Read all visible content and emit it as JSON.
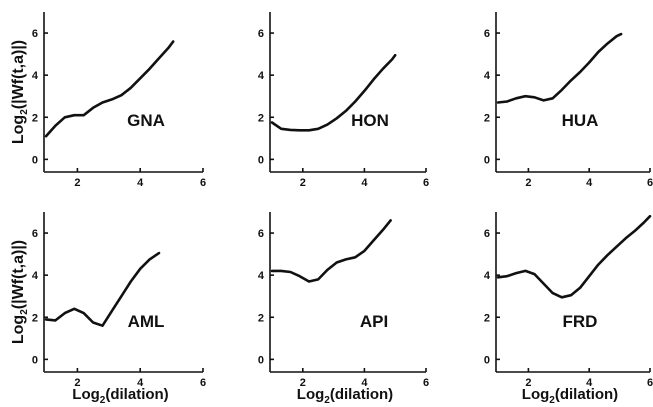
{
  "chart_data": [
    {
      "type": "line",
      "label": "GNA",
      "xlim": [
        1,
        6
      ],
      "ylim": [
        -0.6,
        7
      ],
      "xticks": [
        2,
        4,
        6
      ],
      "yticks": [
        0,
        2,
        4,
        6
      ],
      "ylabel_parts": [
        "Log",
        "2",
        "(|Wf(t,a)|)"
      ],
      "xlabel_parts": [],
      "x": [
        1.0,
        1.3,
        1.6,
        1.9,
        2.2,
        2.5,
        2.8,
        3.1,
        3.4,
        3.7,
        4.0,
        4.3,
        4.6,
        4.9,
        5.05
      ],
      "y": [
        1.1,
        1.6,
        2.0,
        2.1,
        2.1,
        2.45,
        2.7,
        2.85,
        3.05,
        3.4,
        3.85,
        4.3,
        4.8,
        5.3,
        5.6
      ]
    },
    {
      "type": "line",
      "label": "HON",
      "xlim": [
        1,
        6
      ],
      "ylim": [
        -0.6,
        7
      ],
      "xticks": [
        2,
        4,
        6
      ],
      "yticks": [
        0,
        2,
        4,
        6
      ],
      "ylabel_parts": [],
      "xlabel_parts": [],
      "x": [
        1.0,
        1.3,
        1.6,
        1.9,
        2.2,
        2.5,
        2.8,
        3.1,
        3.4,
        3.7,
        4.0,
        4.3,
        4.6,
        4.9,
        5.0
      ],
      "y": [
        1.75,
        1.45,
        1.4,
        1.38,
        1.38,
        1.45,
        1.65,
        1.95,
        2.3,
        2.75,
        3.25,
        3.8,
        4.3,
        4.75,
        4.95
      ]
    },
    {
      "type": "line",
      "label": "HUA",
      "xlim": [
        1,
        6
      ],
      "ylim": [
        -0.6,
        7
      ],
      "xticks": [
        2,
        4,
        6
      ],
      "yticks": [
        0,
        2,
        4,
        6
      ],
      "ylabel_parts": [],
      "xlabel_parts": [],
      "x": [
        1.0,
        1.3,
        1.6,
        1.9,
        2.2,
        2.5,
        2.8,
        3.1,
        3.4,
        3.7,
        4.0,
        4.3,
        4.6,
        4.9,
        5.05
      ],
      "y": [
        2.7,
        2.75,
        2.9,
        3.0,
        2.95,
        2.8,
        2.9,
        3.3,
        3.75,
        4.15,
        4.6,
        5.1,
        5.5,
        5.85,
        5.95
      ]
    },
    {
      "type": "line",
      "label": "AML",
      "xlim": [
        1,
        6
      ],
      "ylim": [
        -0.6,
        7
      ],
      "xticks": [
        2,
        4,
        6
      ],
      "yticks": [
        0,
        2,
        4,
        6
      ],
      "ylabel_parts": [
        "Log",
        "2",
        "(|Wf(t,a)|)"
      ],
      "xlabel_parts": [
        "Log",
        "2",
        "(dilation)"
      ],
      "x": [
        1.0,
        1.3,
        1.6,
        1.9,
        2.2,
        2.5,
        2.8,
        3.1,
        3.4,
        3.7,
        4.0,
        4.3,
        4.6
      ],
      "y": [
        1.9,
        1.85,
        2.2,
        2.4,
        2.2,
        1.75,
        1.6,
        2.3,
        3.0,
        3.7,
        4.3,
        4.75,
        5.05
      ]
    },
    {
      "type": "line",
      "label": "API",
      "xlim": [
        1,
        6
      ],
      "ylim": [
        -0.6,
        7
      ],
      "xticks": [
        2,
        4,
        6
      ],
      "yticks": [
        0,
        2,
        4,
        6
      ],
      "ylabel_parts": [],
      "xlabel_parts": [
        "Log",
        "2",
        "(dilation)"
      ],
      "x": [
        1.0,
        1.3,
        1.6,
        1.9,
        2.2,
        2.5,
        2.8,
        3.1,
        3.4,
        3.7,
        4.0,
        4.3,
        4.6,
        4.85
      ],
      "y": [
        4.2,
        4.2,
        4.15,
        3.95,
        3.7,
        3.8,
        4.25,
        4.6,
        4.75,
        4.85,
        5.15,
        5.65,
        6.15,
        6.6
      ]
    },
    {
      "type": "line",
      "label": "FRD",
      "xlim": [
        1,
        6
      ],
      "ylim": [
        -0.6,
        7
      ],
      "xticks": [
        2,
        4,
        6
      ],
      "yticks": [
        0,
        2,
        4,
        6
      ],
      "ylabel_parts": [],
      "xlabel_parts": [
        "Log",
        "2",
        "(dilation)"
      ],
      "x": [
        1.0,
        1.3,
        1.6,
        1.9,
        2.2,
        2.5,
        2.8,
        3.1,
        3.4,
        3.7,
        4.0,
        4.3,
        4.6,
        4.9,
        5.2,
        5.5,
        5.8,
        6.0
      ],
      "y": [
        3.9,
        3.95,
        4.1,
        4.2,
        4.05,
        3.6,
        3.15,
        2.95,
        3.05,
        3.4,
        3.95,
        4.5,
        4.95,
        5.35,
        5.75,
        6.1,
        6.5,
        6.8
      ]
    }
  ]
}
